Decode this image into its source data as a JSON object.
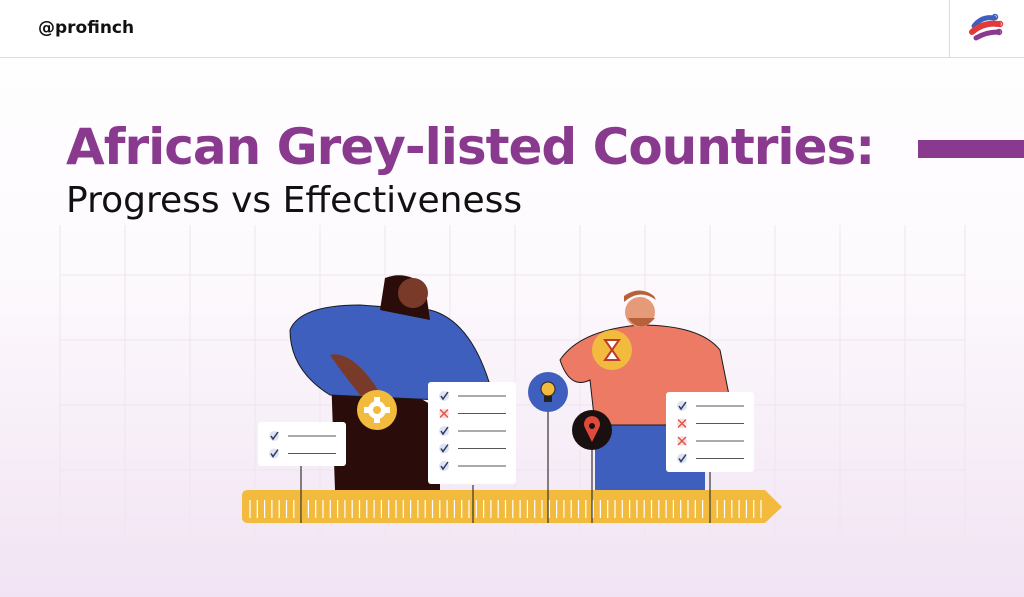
{
  "header": {
    "handle": "@profinch",
    "logo_icon": "profinch-logo-icon"
  },
  "hero": {
    "title": "African Grey-listed Countries:",
    "subtitle": "Progress vs Effectiveness",
    "accent_color": "#8a3a8e"
  },
  "illustration": {
    "icons": [
      "gear-icon",
      "hourglass-icon",
      "lightbulb-icon",
      "location-pin-icon",
      "checklist-icon",
      "ruler-timeline"
    ],
    "colors": {
      "ruler": "#f2bb3d",
      "sweater_blue": "#3f5fbf",
      "shirt_coral": "#ec7a64"
    }
  }
}
